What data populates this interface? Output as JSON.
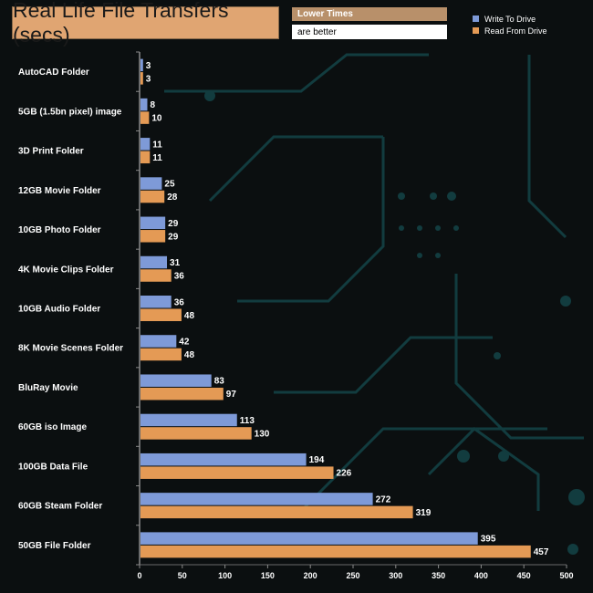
{
  "header": {
    "title": "Real Life File Transfers (secs)",
    "note_top": "Lower Times",
    "note_bottom": "are better"
  },
  "colors": {
    "write": "#7e9ad8",
    "read": "#e49a55",
    "title_bg": "#e0a572"
  },
  "chart_data": {
    "type": "bar",
    "orientation": "horizontal",
    "title": "Real Life File Transfers (secs)",
    "categories": [
      "AutoCAD Folder",
      "5GB (1.5bn pixel) image",
      "3D Print Folder",
      "12GB Movie Folder",
      "10GB Photo Folder",
      "4K Movie Clips Folder",
      "10GB Audio Folder",
      "8K Movie Scenes Folder",
      "BluRay Movie",
      "60GB iso Image",
      "100GB Data File",
      "60GB Steam Folder",
      "50GB File Folder"
    ],
    "series": [
      {
        "name": "Write To  Drive",
        "values": [
          3,
          8,
          11,
          25,
          29,
          31,
          36,
          42,
          83,
          113,
          194,
          272,
          395
        ]
      },
      {
        "name": "Read From  Drive",
        "values": [
          3,
          10,
          11,
          28,
          29,
          36,
          48,
          48,
          97,
          130,
          226,
          319,
          457
        ]
      }
    ],
    "xlim": [
      0,
      500
    ],
    "xticks": [
      0,
      50,
      100,
      150,
      200,
      250,
      300,
      350,
      400,
      450,
      500
    ],
    "legend_position": "top-right",
    "grid": false
  }
}
